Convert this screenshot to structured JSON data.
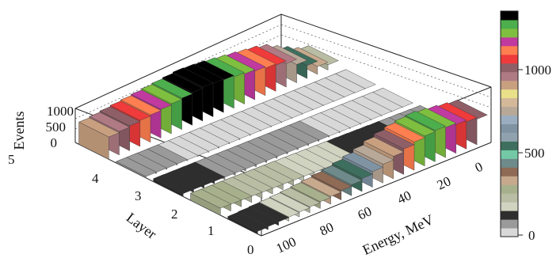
{
  "chart_data": {
    "type": "3d-bar",
    "zlabel": "Events",
    "ylabel": "Layer",
    "xlabel": "Energy, MeV",
    "z_ticks": [
      "0",
      "500",
      "1000"
    ],
    "y_ticks": [
      "0",
      "1",
      "2",
      "3",
      "4",
      "5"
    ],
    "x_ticks": [
      "0",
      "20",
      "40",
      "60",
      "80",
      "100"
    ],
    "colorbar_ticks": [
      "0",
      "500",
      "1000"
    ],
    "colorbar_range": [
      0,
      1300
    ],
    "z_range": [
      0,
      1300
    ],
    "energy_range": [
      0,
      110
    ],
    "layer_range": [
      0,
      5
    ],
    "layers": [
      0,
      1,
      2,
      3,
      4
    ],
    "energy_bins": [
      0,
      5,
      10,
      15,
      20,
      25,
      30,
      35,
      40,
      45,
      50,
      55,
      60,
      65,
      70,
      75,
      80,
      85,
      90,
      95,
      100,
      105
    ],
    "counts": [
      [
        980,
        1040,
        1100,
        1150,
        1200,
        1150,
        1080,
        980,
        860,
        720,
        600,
        500,
        420,
        360,
        300,
        260,
        220,
        190,
        160,
        140,
        120,
        100
      ],
      [
        60,
        70,
        80,
        90,
        100,
        110,
        120,
        130,
        140,
        150,
        160,
        170,
        180,
        190,
        200,
        210,
        220,
        230,
        240,
        250,
        260,
        270
      ],
      [
        10,
        15,
        20,
        25,
        30,
        35,
        40,
        45,
        50,
        55,
        60,
        65,
        70,
        75,
        80,
        85,
        90,
        95,
        100,
        105,
        110,
        115
      ],
      [
        5,
        5,
        10,
        10,
        15,
        15,
        20,
        20,
        25,
        25,
        30,
        30,
        35,
        35,
        40,
        40,
        45,
        45,
        50,
        50,
        55,
        55
      ],
      [
        200,
        300,
        500,
        700,
        900,
        1000,
        1050,
        1100,
        1150,
        1200,
        1250,
        1280,
        1300,
        1250,
        1200,
        1150,
        1100,
        1050,
        1000,
        950,
        900,
        850
      ]
    ],
    "colorscale": [
      "#d8d8d8",
      "#9a9a9a",
      "#2e2e2e",
      "#cfd3c0",
      "#b9bda3",
      "#a7b08c",
      "#c7a98e",
      "#8f6a55",
      "#6f8a8a",
      "#73c9a5",
      "#3e6f5e",
      "#8fa2ad",
      "#7f93a3",
      "#9aaec0",
      "#b8a898",
      "#d3b89a",
      "#e9e08a",
      "#c8a080",
      "#b07a84",
      "#8f5f68",
      "#ef3b3b",
      "#ff7f50",
      "#c03aa0",
      "#7fbf3f",
      "#4cae4c",
      "#000000"
    ],
    "grid": true
  }
}
